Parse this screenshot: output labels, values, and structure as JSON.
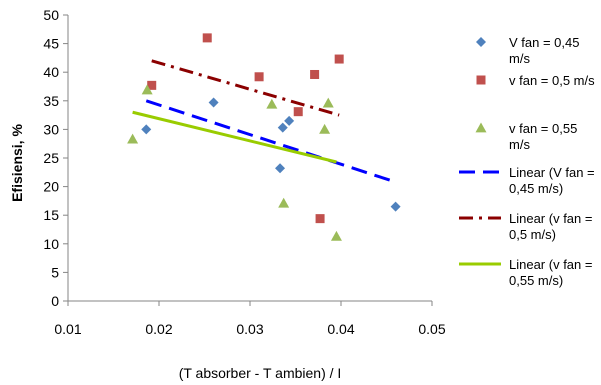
{
  "chart_data": {
    "type": "scatter",
    "title": "",
    "xlabel": "(T absorber - T ambien) / I",
    "ylabel": "Efisiensi, %",
    "xlim": [
      0.01,
      0.05
    ],
    "ylim": [
      0,
      50
    ],
    "x_ticks": [
      "0.01",
      "0.02",
      "0.03",
      "0.04",
      "0.05"
    ],
    "y_ticks": [
      "0",
      "5",
      "10",
      "15",
      "20",
      "25",
      "30",
      "35",
      "40",
      "45",
      "50"
    ],
    "grid": false,
    "legend_position": "right",
    "series": [
      {
        "name": "V fan = 0,45 m/s",
        "marker": "diamond",
        "color": "#4f81bd",
        "points": [
          [
            0.0186,
            30
          ],
          [
            0.026,
            34.7
          ],
          [
            0.0333,
            23.2
          ],
          [
            0.0336,
            30.3
          ],
          [
            0.0343,
            31.5
          ],
          [
            0.046,
            16.5
          ]
        ]
      },
      {
        "name": "v fan = 0,5 m/s",
        "marker": "square",
        "color": "#c0504d",
        "points": [
          [
            0.0192,
            37.7
          ],
          [
            0.0253,
            46
          ],
          [
            0.031,
            39.2
          ],
          [
            0.0353,
            33.1
          ],
          [
            0.0371,
            39.6
          ],
          [
            0.0377,
            14.4
          ],
          [
            0.0398,
            42.3
          ]
        ]
      },
      {
        "name": "v fan = 0,55 m/s",
        "marker": "triangle",
        "color": "#9bbb59",
        "points": [
          [
            0.0171,
            28.3
          ],
          [
            0.0187,
            36.9
          ],
          [
            0.0324,
            34.4
          ],
          [
            0.0337,
            17.1
          ],
          [
            0.0382,
            30
          ],
          [
            0.0386,
            34.6
          ],
          [
            0.0395,
            11.3
          ]
        ]
      }
    ],
    "trendlines": [
      {
        "name": "Linear (V fan = 0,45 m/s)",
        "color": "#0000ff",
        "style": "dash",
        "from": [
          0.0186,
          35.0
        ],
        "to": [
          0.046,
          20.8
        ]
      },
      {
        "name": "Linear (v fan = 0,5 m/s)",
        "color": "#8b0000",
        "style": "dashdot",
        "from": [
          0.0192,
          42.0
        ],
        "to": [
          0.0398,
          32.5
        ]
      },
      {
        "name": "Linear (v fan = 0,55 m/s)",
        "color": "#99cc00",
        "style": "solid",
        "from": [
          0.0171,
          33.0
        ],
        "to": [
          0.0395,
          24.3
        ]
      }
    ],
    "legend": [
      {
        "kind": "series",
        "index": 0,
        "lines": [
          "V fan = 0,45",
          "m/s"
        ]
      },
      {
        "kind": "series",
        "index": 1,
        "lines": [
          "v fan = 0,5 m/s"
        ]
      },
      {
        "kind": "series",
        "index": 2,
        "lines": [
          "v fan = 0,55",
          "m/s"
        ]
      },
      {
        "kind": "trend",
        "index": 0,
        "lines": [
          "Linear (V fan =",
          "0,45 m/s)"
        ]
      },
      {
        "kind": "trend",
        "index": 1,
        "lines": [
          "Linear (v fan =",
          "0,5 m/s)"
        ]
      },
      {
        "kind": "trend",
        "index": 2,
        "lines": [
          "Linear (v fan =",
          "0,55 m/s)"
        ]
      }
    ]
  }
}
